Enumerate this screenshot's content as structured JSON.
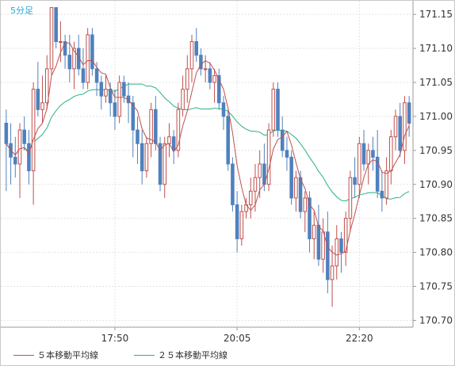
{
  "chart_data": {
    "type": "candlestick",
    "timeframe_label": "5分足",
    "y_ticks": [
      "171.15",
      "171.10",
      "171.05",
      "171.00",
      "170.95",
      "170.90",
      "170.85",
      "170.80",
      "170.75",
      "170.70"
    ],
    "ylim": [
      170.69,
      171.17
    ],
    "x_ticks": [
      "17:50",
      "20:05",
      "22:20"
    ],
    "x_tick_index": [
      24,
      51,
      78
    ],
    "grid": true,
    "legend_position": "bottom-left",
    "colors": {
      "up": "#c0504d",
      "down": "#4f81bd",
      "ma5": "#c0504d",
      "ma25": "#2ab081",
      "axis_text": "#333333",
      "timeframe_text": "#2aa7d8"
    },
    "series": [
      {
        "name": "５本移動平均線",
        "color": "#c0504d"
      },
      {
        "name": "２５本移動平均線",
        "color": "#2ab081"
      }
    ],
    "candles": [
      [
        170.99,
        171.01,
        170.89,
        170.96
      ],
      [
        170.96,
        170.99,
        170.9,
        170.94
      ],
      [
        170.94,
        170.97,
        170.91,
        170.93
      ],
      [
        170.93,
        170.99,
        170.88,
        170.98
      ],
      [
        170.98,
        171.0,
        170.95,
        170.96
      ],
      [
        170.96,
        170.98,
        170.9,
        170.92
      ],
      [
        170.92,
        171.05,
        170.87,
        171.04
      ],
      [
        171.04,
        171.08,
        171.0,
        171.01
      ],
      [
        171.01,
        171.06,
        170.99,
        171.02
      ],
      [
        171.02,
        171.09,
        171.01,
        171.07
      ],
      [
        171.07,
        171.16,
        171.06,
        171.16
      ],
      [
        171.16,
        171.16,
        171.1,
        171.11
      ],
      [
        171.11,
        171.14,
        171.08,
        171.11
      ],
      [
        171.11,
        171.12,
        171.07,
        171.09
      ],
      [
        171.09,
        171.12,
        171.05,
        171.07
      ],
      [
        171.07,
        171.11,
        171.04,
        171.1
      ],
      [
        171.1,
        171.12,
        171.06,
        171.07
      ],
      [
        171.07,
        171.1,
        171.04,
        171.05
      ],
      [
        171.05,
        171.13,
        171.04,
        171.12
      ],
      [
        171.12,
        171.13,
        171.06,
        171.07
      ],
      [
        171.07,
        171.08,
        171.03,
        171.05
      ],
      [
        171.05,
        171.06,
        171.01,
        171.03
      ],
      [
        171.03,
        171.06,
        171.02,
        171.04
      ],
      [
        171.04,
        171.05,
        171.0,
        171.02
      ],
      [
        171.02,
        171.04,
        170.98,
        171.0
      ],
      [
        171.0,
        171.06,
        170.99,
        171.05
      ],
      [
        171.05,
        171.06,
        171.02,
        171.03
      ],
      [
        171.03,
        171.05,
        170.99,
        171.02
      ],
      [
        171.02,
        171.03,
        170.94,
        170.98
      ],
      [
        170.98,
        171.0,
        170.93,
        170.96
      ],
      [
        170.96,
        170.98,
        170.9,
        170.92
      ],
      [
        170.92,
        170.97,
        170.91,
        170.96
      ],
      [
        170.96,
        171.02,
        170.94,
        171.01
      ],
      [
        171.01,
        171.03,
        170.95,
        170.96
      ],
      [
        170.96,
        170.97,
        170.89,
        170.9
      ],
      [
        170.9,
        170.97,
        170.88,
        170.96
      ],
      [
        170.96,
        170.99,
        170.94,
        170.97
      ],
      [
        170.97,
        170.98,
        170.93,
        170.95
      ],
      [
        170.95,
        171.02,
        170.94,
        171.01
      ],
      [
        171.01,
        171.06,
        171.0,
        171.04
      ],
      [
        171.04,
        171.09,
        171.02,
        171.07
      ],
      [
        171.07,
        171.12,
        171.05,
        171.11
      ],
      [
        171.11,
        171.13,
        171.08,
        171.09
      ],
      [
        171.09,
        171.1,
        171.06,
        171.07
      ],
      [
        171.07,
        171.09,
        171.05,
        171.07
      ],
      [
        171.07,
        171.08,
        171.04,
        171.05
      ],
      [
        171.05,
        171.07,
        171.02,
        171.06
      ],
      [
        171.06,
        171.07,
        171.01,
        171.02
      ],
      [
        171.02,
        171.03,
        170.98,
        171.0
      ],
      [
        171.0,
        171.01,
        170.92,
        170.93
      ],
      [
        170.93,
        170.94,
        170.86,
        170.87
      ],
      [
        170.87,
        170.89,
        170.8,
        170.82
      ],
      [
        170.82,
        170.87,
        170.81,
        170.86
      ],
      [
        170.86,
        170.88,
        170.85,
        170.87
      ],
      [
        170.87,
        170.91,
        170.85,
        170.89
      ],
      [
        170.89,
        170.93,
        170.86,
        170.91
      ],
      [
        170.91,
        170.95,
        170.88,
        170.93
      ],
      [
        170.93,
        170.96,
        170.89,
        170.9
      ],
      [
        170.9,
        170.99,
        170.89,
        170.98
      ],
      [
        170.98,
        171.05,
        170.97,
        171.04
      ],
      [
        171.04,
        171.05,
        170.97,
        170.98
      ],
      [
        170.98,
        171.0,
        170.94,
        170.95
      ],
      [
        170.95,
        170.97,
        170.92,
        170.94
      ],
      [
        170.94,
        170.95,
        170.87,
        170.88
      ],
      [
        170.88,
        170.92,
        170.86,
        170.91
      ],
      [
        170.91,
        170.92,
        170.85,
        170.86
      ],
      [
        170.86,
        170.89,
        170.83,
        170.88
      ],
      [
        170.88,
        170.89,
        170.8,
        170.82
      ],
      [
        170.82,
        170.86,
        170.79,
        170.84
      ],
      [
        170.84,
        170.87,
        170.78,
        170.79
      ],
      [
        170.79,
        170.85,
        170.77,
        170.83
      ],
      [
        170.83,
        170.86,
        170.74,
        170.76
      ],
      [
        170.76,
        170.81,
        170.72,
        170.78
      ],
      [
        170.78,
        170.84,
        170.76,
        170.82
      ],
      [
        170.82,
        170.83,
        170.77,
        170.8
      ],
      [
        170.8,
        170.86,
        170.78,
        170.85
      ],
      [
        170.85,
        170.92,
        170.83,
        170.91
      ],
      [
        170.91,
        170.94,
        170.88,
        170.9
      ],
      [
        170.9,
        170.97,
        170.88,
        170.96
      ],
      [
        170.96,
        170.98,
        170.92,
        170.93
      ],
      [
        170.93,
        170.96,
        170.9,
        170.95
      ],
      [
        170.95,
        170.97,
        170.92,
        170.94
      ],
      [
        170.94,
        170.98,
        170.88,
        170.89
      ],
      [
        170.89,
        170.92,
        170.86,
        170.88
      ],
      [
        170.88,
        170.94,
        170.87,
        170.92
      ],
      [
        170.92,
        170.98,
        170.9,
        170.97
      ],
      [
        170.97,
        171.01,
        170.95,
        171.0
      ],
      [
        171.0,
        171.02,
        170.94,
        170.95
      ],
      [
        170.95,
        171.03,
        170.93,
        171.02
      ],
      [
        171.02,
        171.03,
        170.97,
        170.99
      ]
    ]
  }
}
